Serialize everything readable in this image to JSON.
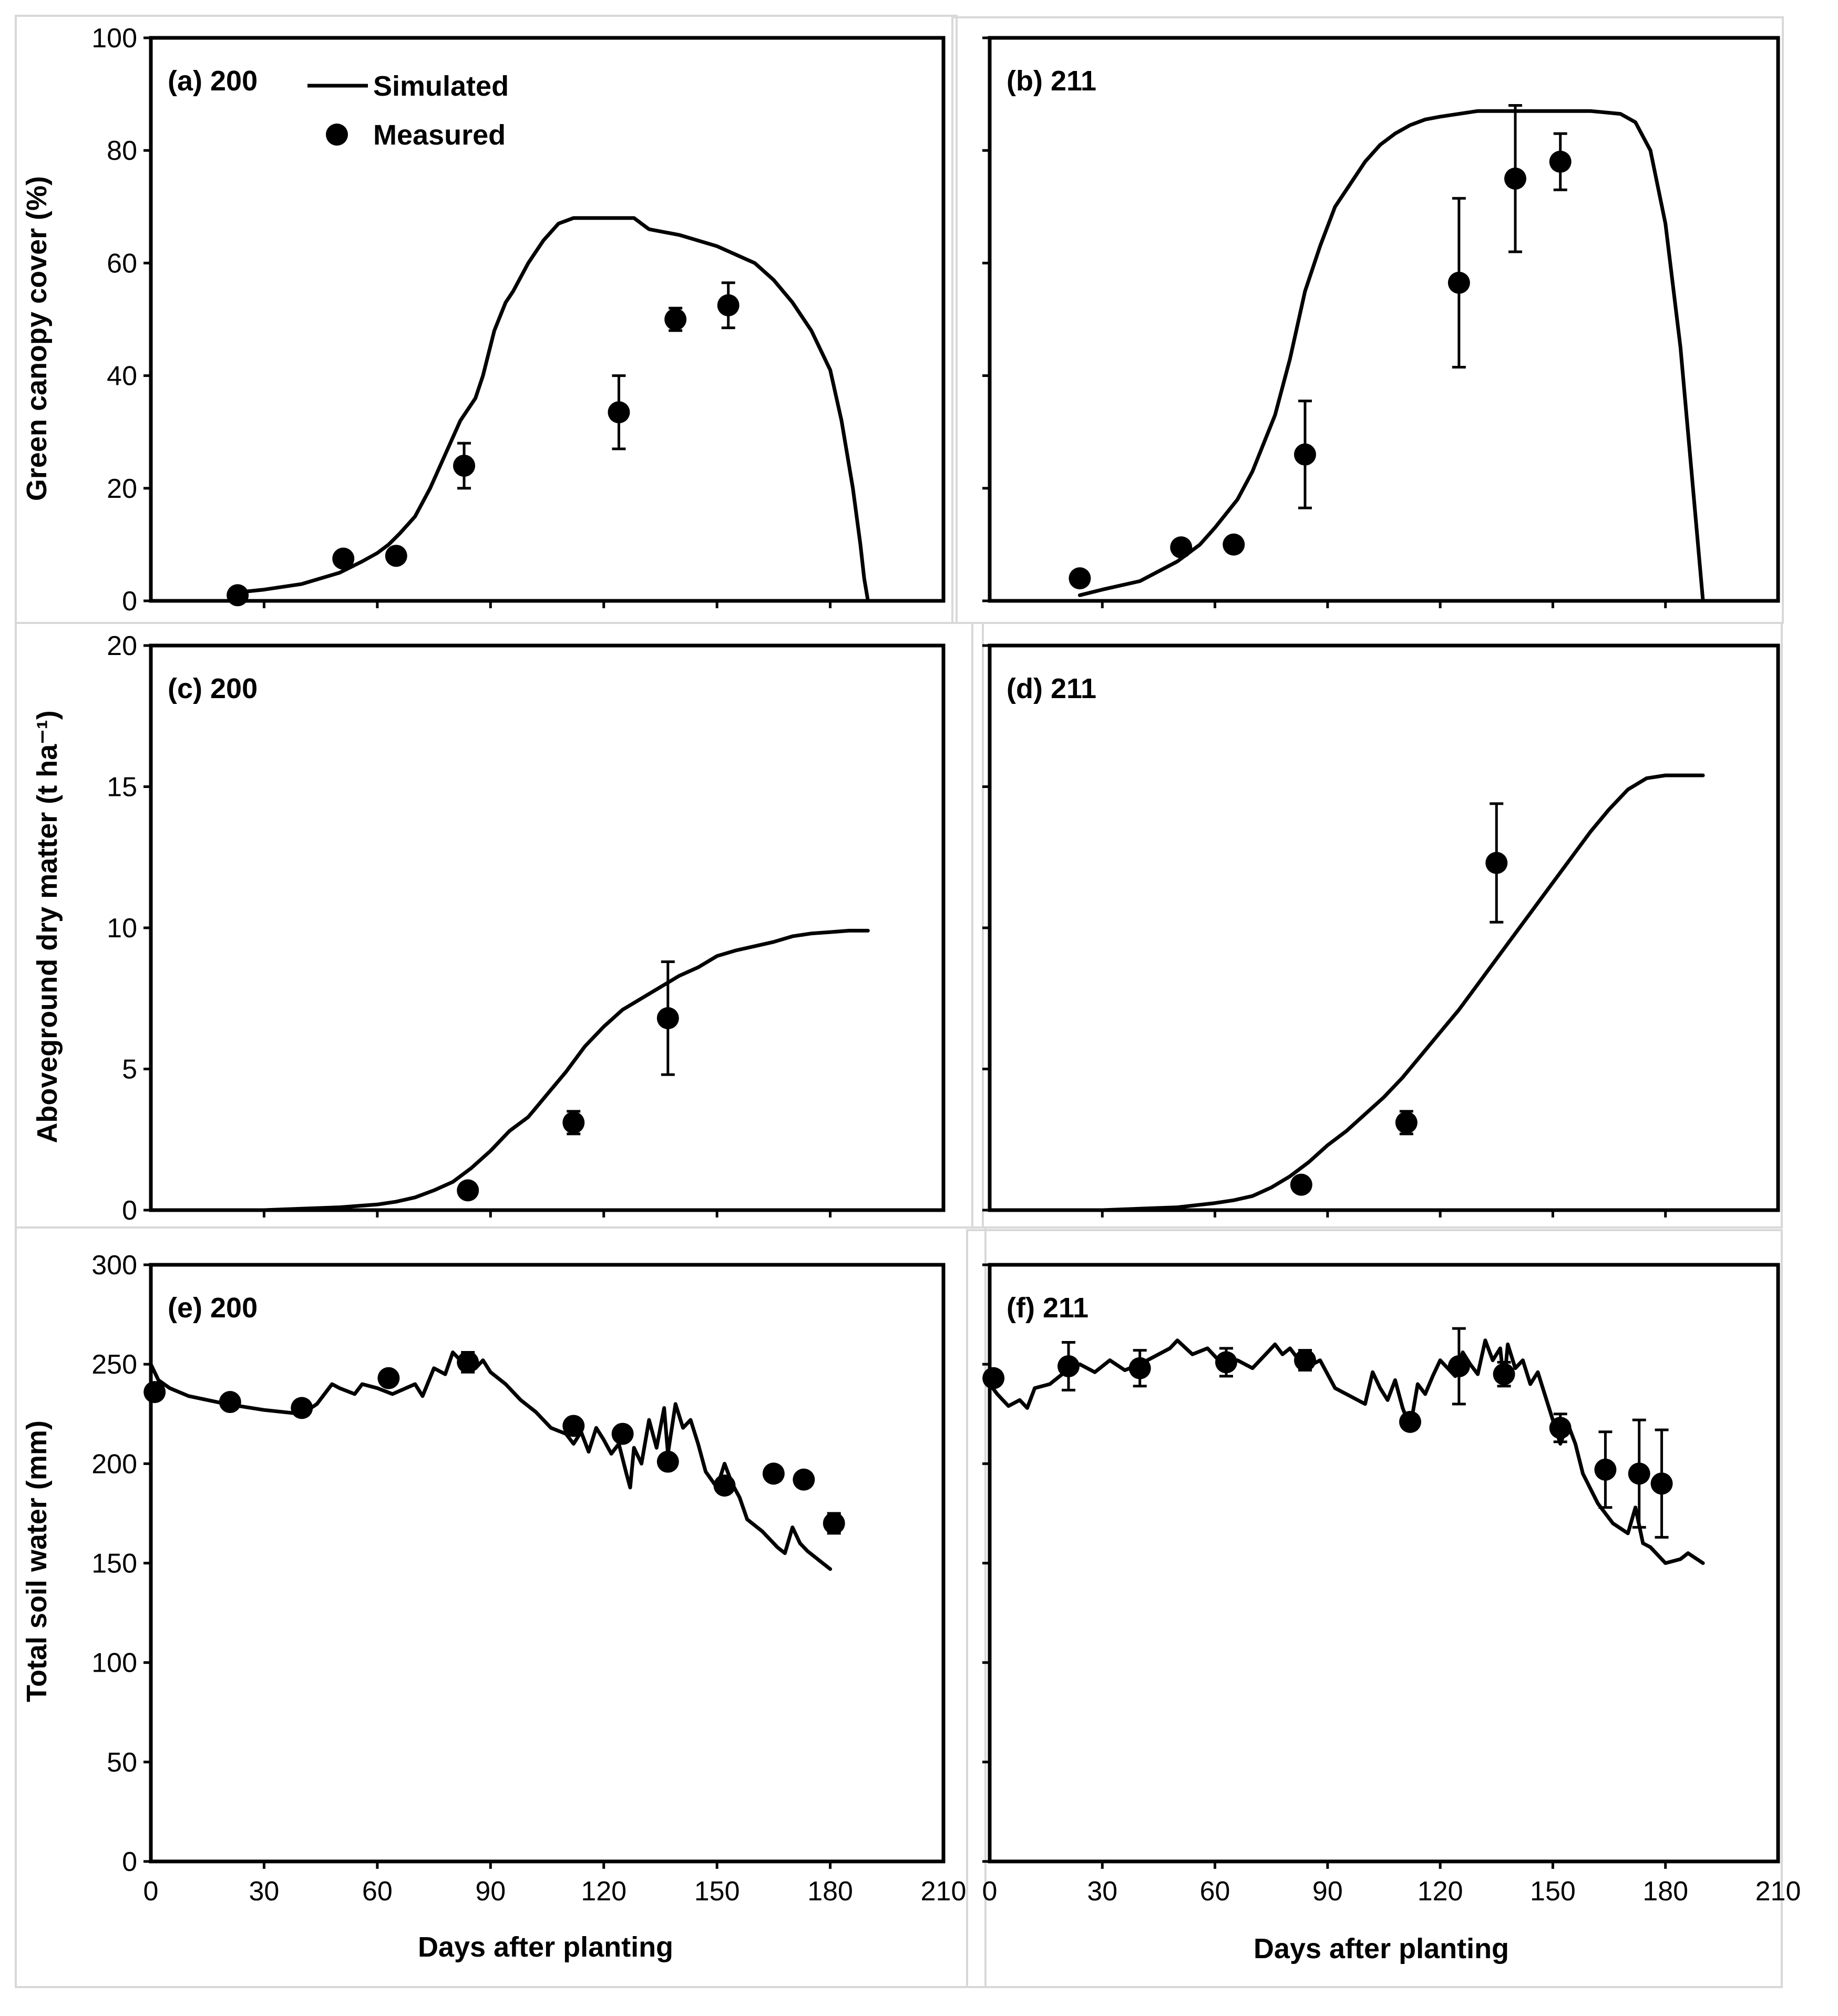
{
  "legend": {
    "simulated_label": "Simulated",
    "measured_label": "Measured"
  },
  "chart_data": [
    {
      "id": "a",
      "type": "line",
      "title": "(a) 200",
      "xlabel": "",
      "ylabel": "Green canopy cover (%)",
      "xlim": [
        0,
        210
      ],
      "ylim": [
        0,
        100
      ],
      "xticks": [],
      "yticks": [
        0,
        20,
        40,
        60,
        80,
        100
      ],
      "xtick_labels_shown": false,
      "ytick_labels_shown": true,
      "legend_shown": true,
      "series": [
        {
          "name": "Simulated",
          "kind": "line",
          "x": [
            23,
            30,
            40,
            50,
            56,
            60,
            63,
            66,
            70,
            74,
            78,
            82,
            86,
            88,
            91,
            94,
            96,
            100,
            104,
            108,
            112,
            116,
            120,
            128,
            130,
            132,
            140,
            150,
            160,
            165,
            170,
            175,
            180,
            183,
            186,
            188,
            189,
            190
          ],
          "y": [
            1.5,
            2,
            3,
            5,
            7,
            8.5,
            10,
            12,
            15,
            20,
            26,
            32,
            36,
            40,
            48,
            53,
            55,
            60,
            64,
            67,
            68,
            68,
            68,
            68,
            67,
            66,
            65,
            63,
            60,
            57,
            53,
            48,
            41,
            32,
            20,
            10,
            4,
            0
          ]
        },
        {
          "name": "Measured",
          "kind": "scatter",
          "x": [
            23,
            51,
            65,
            83,
            124,
            139,
            153
          ],
          "y": [
            1,
            7.5,
            8,
            24,
            33.5,
            50,
            52.5
          ],
          "err": [
            0,
            0,
            0,
            4,
            6.5,
            2,
            4
          ]
        }
      ]
    },
    {
      "id": "b",
      "type": "line",
      "title": "(b) 211",
      "xlabel": "",
      "ylabel": "",
      "xlim": [
        0,
        210
      ],
      "ylim": [
        0,
        100
      ],
      "xticks": [],
      "yticks": [
        0,
        20,
        40,
        60,
        80,
        100
      ],
      "xtick_labels_shown": false,
      "ytick_labels_shown": false,
      "legend_shown": false,
      "series": [
        {
          "name": "Simulated",
          "kind": "line",
          "x": [
            24,
            30,
            40,
            50,
            56,
            60,
            66,
            70,
            76,
            80,
            84,
            88,
            92,
            96,
            100,
            104,
            108,
            112,
            116,
            120,
            125,
            130,
            140,
            150,
            160,
            168,
            172,
            176,
            180,
            184,
            188,
            190
          ],
          "y": [
            1,
            2,
            3.5,
            7,
            10,
            13,
            18,
            23,
            33,
            43,
            55,
            63,
            70,
            74,
            78,
            81,
            83,
            84.5,
            85.5,
            86,
            86.5,
            87,
            87,
            87,
            87,
            86.5,
            85,
            80,
            67,
            45,
            15,
            0
          ]
        },
        {
          "name": "Measured",
          "kind": "scatter",
          "x": [
            24,
            51,
            65,
            84,
            125,
            140,
            152
          ],
          "y": [
            4,
            9.5,
            10,
            26,
            56.5,
            75,
            78
          ],
          "err": [
            0,
            0,
            0,
            9.5,
            15,
            13,
            5
          ]
        }
      ]
    },
    {
      "id": "c",
      "type": "line",
      "title": "(c) 200",
      "xlabel": "",
      "ylabel": "Aboveground dry matter (t ha⁻¹)",
      "xlim": [
        0,
        210
      ],
      "ylim": [
        0,
        20
      ],
      "xticks": [],
      "yticks": [
        0,
        5,
        10,
        15,
        20
      ],
      "xtick_labels_shown": false,
      "ytick_labels_shown": true,
      "legend_shown": false,
      "series": [
        {
          "name": "Simulated",
          "kind": "line",
          "x": [
            30,
            40,
            50,
            60,
            65,
            70,
            75,
            80,
            85,
            90,
            95,
            100,
            105,
            110,
            115,
            120,
            125,
            130,
            135,
            140,
            145,
            150,
            155,
            160,
            165,
            170,
            175,
            180,
            185,
            190
          ],
          "y": [
            0,
            0.05,
            0.1,
            0.2,
            0.3,
            0.45,
            0.7,
            1.0,
            1.5,
            2.1,
            2.8,
            3.3,
            4.1,
            4.9,
            5.8,
            6.5,
            7.1,
            7.5,
            7.9,
            8.3,
            8.6,
            9.0,
            9.2,
            9.35,
            9.5,
            9.7,
            9.8,
            9.85,
            9.9,
            9.9
          ]
        },
        {
          "name": "Measured",
          "kind": "scatter",
          "x": [
            84,
            112,
            137
          ],
          "y": [
            0.7,
            3.1,
            6.8
          ],
          "err": [
            0,
            0.4,
            2.0
          ]
        }
      ]
    },
    {
      "id": "d",
      "type": "line",
      "title": "(d) 211",
      "xlabel": "",
      "ylabel": "",
      "xlim": [
        0,
        210
      ],
      "ylim": [
        0,
        20
      ],
      "xticks": [],
      "yticks": [
        0,
        5,
        10,
        15,
        20
      ],
      "xtick_labels_shown": false,
      "ytick_labels_shown": false,
      "legend_shown": false,
      "series": [
        {
          "name": "Simulated",
          "kind": "line",
          "x": [
            30,
            40,
            50,
            60,
            65,
            70,
            75,
            80,
            85,
            90,
            95,
            100,
            105,
            110,
            115,
            120,
            125,
            130,
            135,
            140,
            145,
            150,
            155,
            160,
            165,
            170,
            175,
            180,
            185,
            190
          ],
          "y": [
            0,
            0.05,
            0.1,
            0.25,
            0.35,
            0.5,
            0.8,
            1.2,
            1.7,
            2.3,
            2.8,
            3.4,
            4.0,
            4.7,
            5.5,
            6.3,
            7.1,
            8.0,
            8.9,
            9.8,
            10.7,
            11.6,
            12.5,
            13.4,
            14.2,
            14.9,
            15.3,
            15.4,
            15.4,
            15.4
          ]
        },
        {
          "name": "Measured",
          "kind": "scatter",
          "x": [
            83,
            111,
            135
          ],
          "y": [
            0.9,
            3.1,
            12.3
          ],
          "err": [
            0,
            0.4,
            2.1
          ]
        }
      ]
    },
    {
      "id": "e",
      "type": "line",
      "title": "(e) 200",
      "xlabel": "Days after planting",
      "ylabel": "Total soil water (mm)",
      "xlim": [
        0,
        210
      ],
      "ylim": [
        0,
        300
      ],
      "xticks": [
        0,
        30,
        60,
        90,
        120,
        150,
        180,
        210
      ],
      "yticks": [
        0,
        50,
        100,
        150,
        200,
        250,
        300
      ],
      "xtick_labels_shown": true,
      "ytick_labels_shown": true,
      "legend_shown": false,
      "series": [
        {
          "name": "Simulated",
          "kind": "line",
          "x": [
            0,
            2,
            5,
            10,
            20,
            30,
            40,
            44,
            48,
            50,
            54,
            56,
            60,
            64,
            70,
            72,
            75,
            78,
            80,
            82,
            84,
            86,
            88,
            90,
            94,
            98,
            102,
            106,
            110,
            112,
            114,
            116,
            118,
            120,
            122,
            124,
            126,
            127,
            128,
            130,
            132,
            134,
            136,
            137,
            139,
            141,
            143,
            145,
            147,
            150,
            152,
            154,
            156,
            158,
            162,
            166,
            168,
            170,
            172,
            174,
            178,
            180
          ],
          "y": [
            250,
            242,
            238,
            234,
            230,
            227,
            225,
            230,
            240,
            238,
            235,
            240,
            238,
            235,
            240,
            234,
            248,
            245,
            256,
            252,
            255,
            248,
            252,
            246,
            240,
            232,
            226,
            218,
            215,
            210,
            216,
            206,
            218,
            212,
            205,
            210,
            195,
            188,
            208,
            200,
            222,
            208,
            228,
            205,
            230,
            218,
            222,
            210,
            196,
            188,
            200,
            190,
            183,
            172,
            166,
            158,
            155,
            168,
            160,
            156,
            150,
            147
          ]
        },
        {
          "name": "Measured",
          "kind": "scatter",
          "x": [
            1,
            21,
            40,
            63,
            84,
            112,
            125,
            137,
            152,
            165,
            173,
            181
          ],
          "y": [
            236,
            231,
            228,
            243,
            251,
            219,
            215,
            201,
            189,
            195,
            192,
            170
          ],
          "err": [
            0,
            0,
            0,
            0,
            5,
            0,
            0,
            0,
            0,
            0,
            0,
            5
          ]
        }
      ]
    },
    {
      "id": "f",
      "type": "line",
      "title": "(f) 211",
      "xlabel": "Days after planting",
      "ylabel": "",
      "xlim": [
        0,
        210
      ],
      "ylim": [
        0,
        300
      ],
      "xticks": [
        0,
        30,
        60,
        90,
        120,
        150,
        180,
        210
      ],
      "yticks": [
        0,
        50,
        100,
        150,
        200,
        250,
        300
      ],
      "xtick_labels_shown": true,
      "ytick_labels_shown": false,
      "legend_shown": false,
      "series": [
        {
          "name": "Simulated",
          "kind": "line",
          "x": [
            0,
            2,
            5,
            8,
            10,
            12,
            16,
            20,
            24,
            28,
            32,
            36,
            40,
            44,
            48,
            50,
            54,
            58,
            62,
            66,
            70,
            74,
            76,
            78,
            80,
            84,
            88,
            92,
            96,
            100,
            102,
            104,
            106,
            108,
            110,
            112,
            114,
            116,
            118,
            120,
            122,
            124,
            126,
            128,
            130,
            132,
            134,
            136,
            137,
            138,
            140,
            142,
            144,
            146,
            148,
            150,
            152,
            154,
            156,
            158,
            162,
            166,
            170,
            172,
            174,
            176,
            180,
            184,
            186,
            190
          ],
          "y": [
            240,
            235,
            229,
            232,
            228,
            238,
            240,
            246,
            250,
            246,
            252,
            247,
            250,
            254,
            258,
            262,
            255,
            258,
            250,
            252,
            248,
            256,
            260,
            255,
            258,
            248,
            252,
            238,
            234,
            230,
            246,
            238,
            232,
            242,
            228,
            218,
            240,
            235,
            244,
            252,
            248,
            244,
            256,
            250,
            245,
            262,
            252,
            258,
            240,
            260,
            248,
            252,
            240,
            246,
            234,
            222,
            210,
            220,
            210,
            195,
            180,
            170,
            165,
            178,
            160,
            158,
            150,
            152,
            155,
            150
          ]
        },
        {
          "name": "Measured",
          "kind": "scatter",
          "x": [
            1,
            21,
            40,
            63,
            84,
            112,
            125,
            137,
            152,
            164,
            173,
            179
          ],
          "y": [
            243,
            249,
            248,
            251,
            252,
            221,
            249,
            245,
            218,
            197,
            195,
            190
          ],
          "err": [
            0,
            12,
            9,
            7,
            5,
            0,
            19,
            6,
            7,
            19,
            27,
            27
          ]
        }
      ]
    }
  ]
}
